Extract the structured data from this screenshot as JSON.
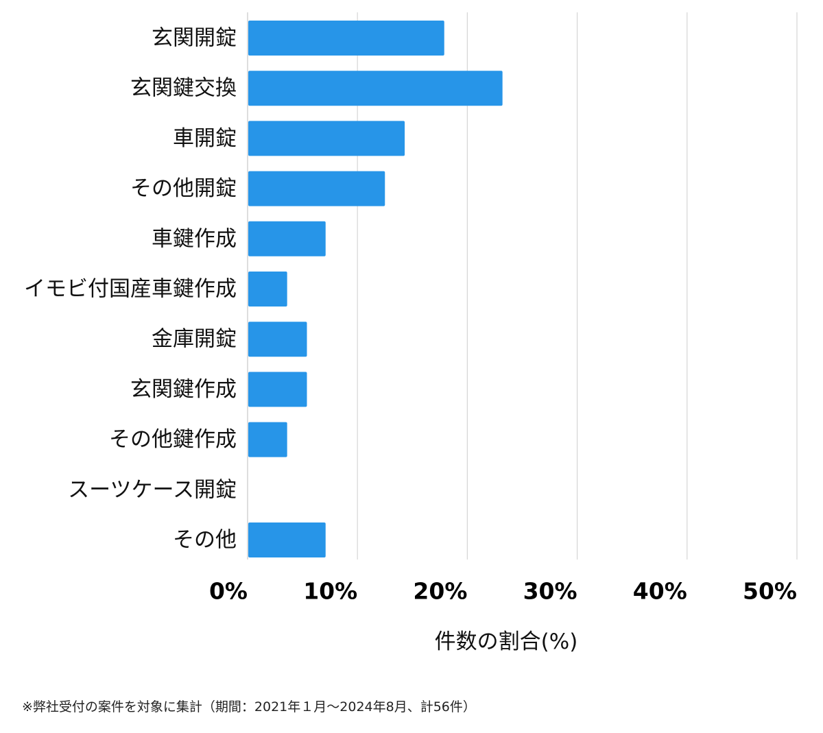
{
  "chart_data": {
    "type": "bar",
    "orientation": "horizontal",
    "categories": [
      "玄関開錠",
      "玄関鍵交換",
      "車開錠",
      "その他開錠",
      "車鍵作成",
      "イモビ付国産車鍵作成",
      "金庫開錠",
      "玄関鍵作成",
      "その他鍵作成",
      "スーツケース開錠",
      "その他"
    ],
    "values": [
      17.9,
      23.2,
      14.3,
      12.5,
      7.1,
      3.6,
      5.4,
      5.4,
      3.6,
      0,
      7.1
    ],
    "xlim": [
      0,
      50
    ],
    "xticks": [
      0,
      10,
      20,
      30,
      40,
      50
    ],
    "xtick_labels": [
      "0%",
      "10%",
      "20%",
      "30%",
      "40%",
      "50%"
    ],
    "xlabel": "件数の割合(%)",
    "ylabel": "",
    "grid": "vertical",
    "bar_color": "#2795e8",
    "grid_color": "#d5d5d5"
  },
  "footnote": "※弊社受付の案件を対象に集計（期間：2021年１月〜2024年8月、計56件）"
}
